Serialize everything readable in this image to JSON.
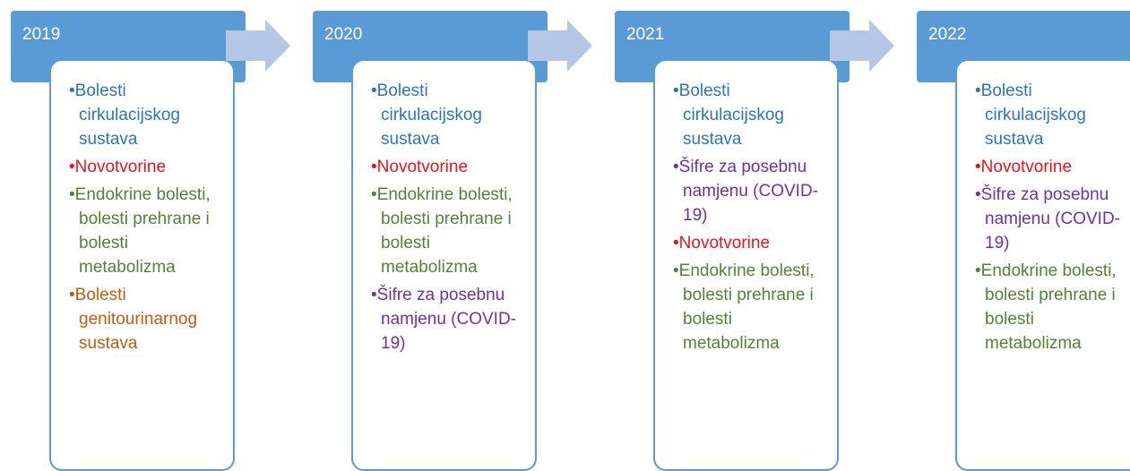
{
  "columns": [
    {
      "year": "2019",
      "items": [
        {
          "text": "Bolesti cirkulacijskog sustava",
          "color": "#2e75b6"
        },
        {
          "text": "Novotvorine",
          "color": "#e8141c"
        },
        {
          "text": "Endokrine bolesti, bolesti prehrane i bolesti metabolizma",
          "color": "#548235"
        },
        {
          "text": "Bolesti genitourinarnog sustava",
          "color": "#c55a11"
        }
      ]
    },
    {
      "year": "2020",
      "items": [
        {
          "text": "Bolesti cirkulacijskog sustava",
          "color": "#2e75b6"
        },
        {
          "text": "Novotvorine",
          "color": "#e8141c"
        },
        {
          "text": "Endokrine bolesti, bolesti prehrane i bolesti metabolizma",
          "color": "#548235"
        },
        {
          "text": "Šifre za posebnu namjenu (COVID-19)",
          "color": "#7030a0"
        }
      ]
    },
    {
      "year": "2021",
      "items": [
        {
          "text": "Bolesti cirkulacijskog sustava",
          "color": "#2e75b6"
        },
        {
          "text": "Šifre za posebnu namjenu (COVID-19)",
          "color": "#7030a0"
        },
        {
          "text": "Novotvorine",
          "color": "#e8141c"
        },
        {
          "text": "Endokrine bolesti, bolesti prehrane i bolesti metabolizma",
          "color": "#548235"
        }
      ]
    },
    {
      "year": "2022",
      "items": [
        {
          "text": "Bolesti cirkulacijskog sustava",
          "color": "#2e75b6"
        },
        {
          "text": "Novotvorine",
          "color": "#e8141c"
        },
        {
          "text": "Šifre za posebnu namjenu (COVID-19)",
          "color": "#7030a0"
        },
        {
          "text": "Endokrine bolesti, bolesti prehrane i bolesti metabolizma",
          "color": "#548235"
        }
      ]
    }
  ]
}
